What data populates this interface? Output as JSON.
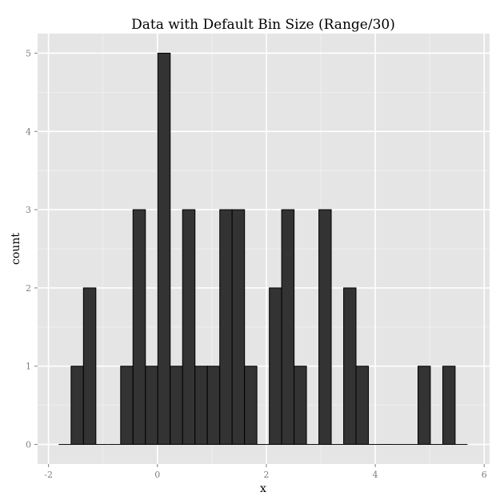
{
  "chart_data": {
    "type": "bar",
    "title": "Data with Default Bin Size (Range/30)",
    "xlabel": "x",
    "ylabel": "count",
    "xlim": [
      -2.2,
      6.1
    ],
    "ylim": [
      -0.25,
      5.25
    ],
    "x_ticks": [
      -2,
      0,
      2,
      4,
      6
    ],
    "y_ticks": [
      0,
      1,
      2,
      3,
      4,
      5
    ],
    "grid": true,
    "bin_width": 0.2275,
    "bins": [
      {
        "start": -1.813,
        "end": -1.585,
        "count": 0
      },
      {
        "start": -1.585,
        "end": -1.358,
        "count": 1
      },
      {
        "start": -1.358,
        "end": -1.13,
        "count": 2
      },
      {
        "start": -1.13,
        "end": -0.903,
        "count": 0
      },
      {
        "start": -0.903,
        "end": -0.675,
        "count": 0
      },
      {
        "start": -0.675,
        "end": -0.448,
        "count": 1
      },
      {
        "start": -0.448,
        "end": -0.22,
        "count": 3
      },
      {
        "start": -0.22,
        "end": 0.007,
        "count": 1
      },
      {
        "start": 0.007,
        "end": 0.235,
        "count": 5
      },
      {
        "start": 0.235,
        "end": 0.462,
        "count": 1
      },
      {
        "start": 0.462,
        "end": 0.69,
        "count": 3
      },
      {
        "start": 0.69,
        "end": 0.917,
        "count": 1
      },
      {
        "start": 0.917,
        "end": 1.145,
        "count": 1
      },
      {
        "start": 1.145,
        "end": 1.372,
        "count": 3
      },
      {
        "start": 1.372,
        "end": 1.6,
        "count": 3
      },
      {
        "start": 1.6,
        "end": 1.827,
        "count": 1
      },
      {
        "start": 1.827,
        "end": 2.055,
        "count": 0
      },
      {
        "start": 2.055,
        "end": 2.282,
        "count": 2
      },
      {
        "start": 2.282,
        "end": 2.51,
        "count": 3
      },
      {
        "start": 2.51,
        "end": 2.737,
        "count": 1
      },
      {
        "start": 2.737,
        "end": 2.965,
        "count": 0
      },
      {
        "start": 2.965,
        "end": 3.192,
        "count": 3
      },
      {
        "start": 3.192,
        "end": 3.42,
        "count": 0
      },
      {
        "start": 3.42,
        "end": 3.647,
        "count": 2
      },
      {
        "start": 3.647,
        "end": 3.875,
        "count": 1
      },
      {
        "start": 3.875,
        "end": 4.102,
        "count": 0
      },
      {
        "start": 4.102,
        "end": 4.33,
        "count": 0
      },
      {
        "start": 4.33,
        "end": 4.557,
        "count": 0
      },
      {
        "start": 4.557,
        "end": 4.785,
        "count": 0
      },
      {
        "start": 4.785,
        "end": 5.012,
        "count": 1
      },
      {
        "start": 5.012,
        "end": 5.24,
        "count": 0
      },
      {
        "start": 5.24,
        "end": 5.467,
        "count": 1
      },
      {
        "start": 5.467,
        "end": 5.695,
        "count": 0
      }
    ],
    "colors": {
      "panel_background": "#e5e5e5",
      "grid_major": "#ffffff",
      "grid_minor": "#f2f2f2",
      "bar_fill": "#333333",
      "bar_outline": "#000000",
      "tick_color": "#7f7f7f"
    }
  }
}
